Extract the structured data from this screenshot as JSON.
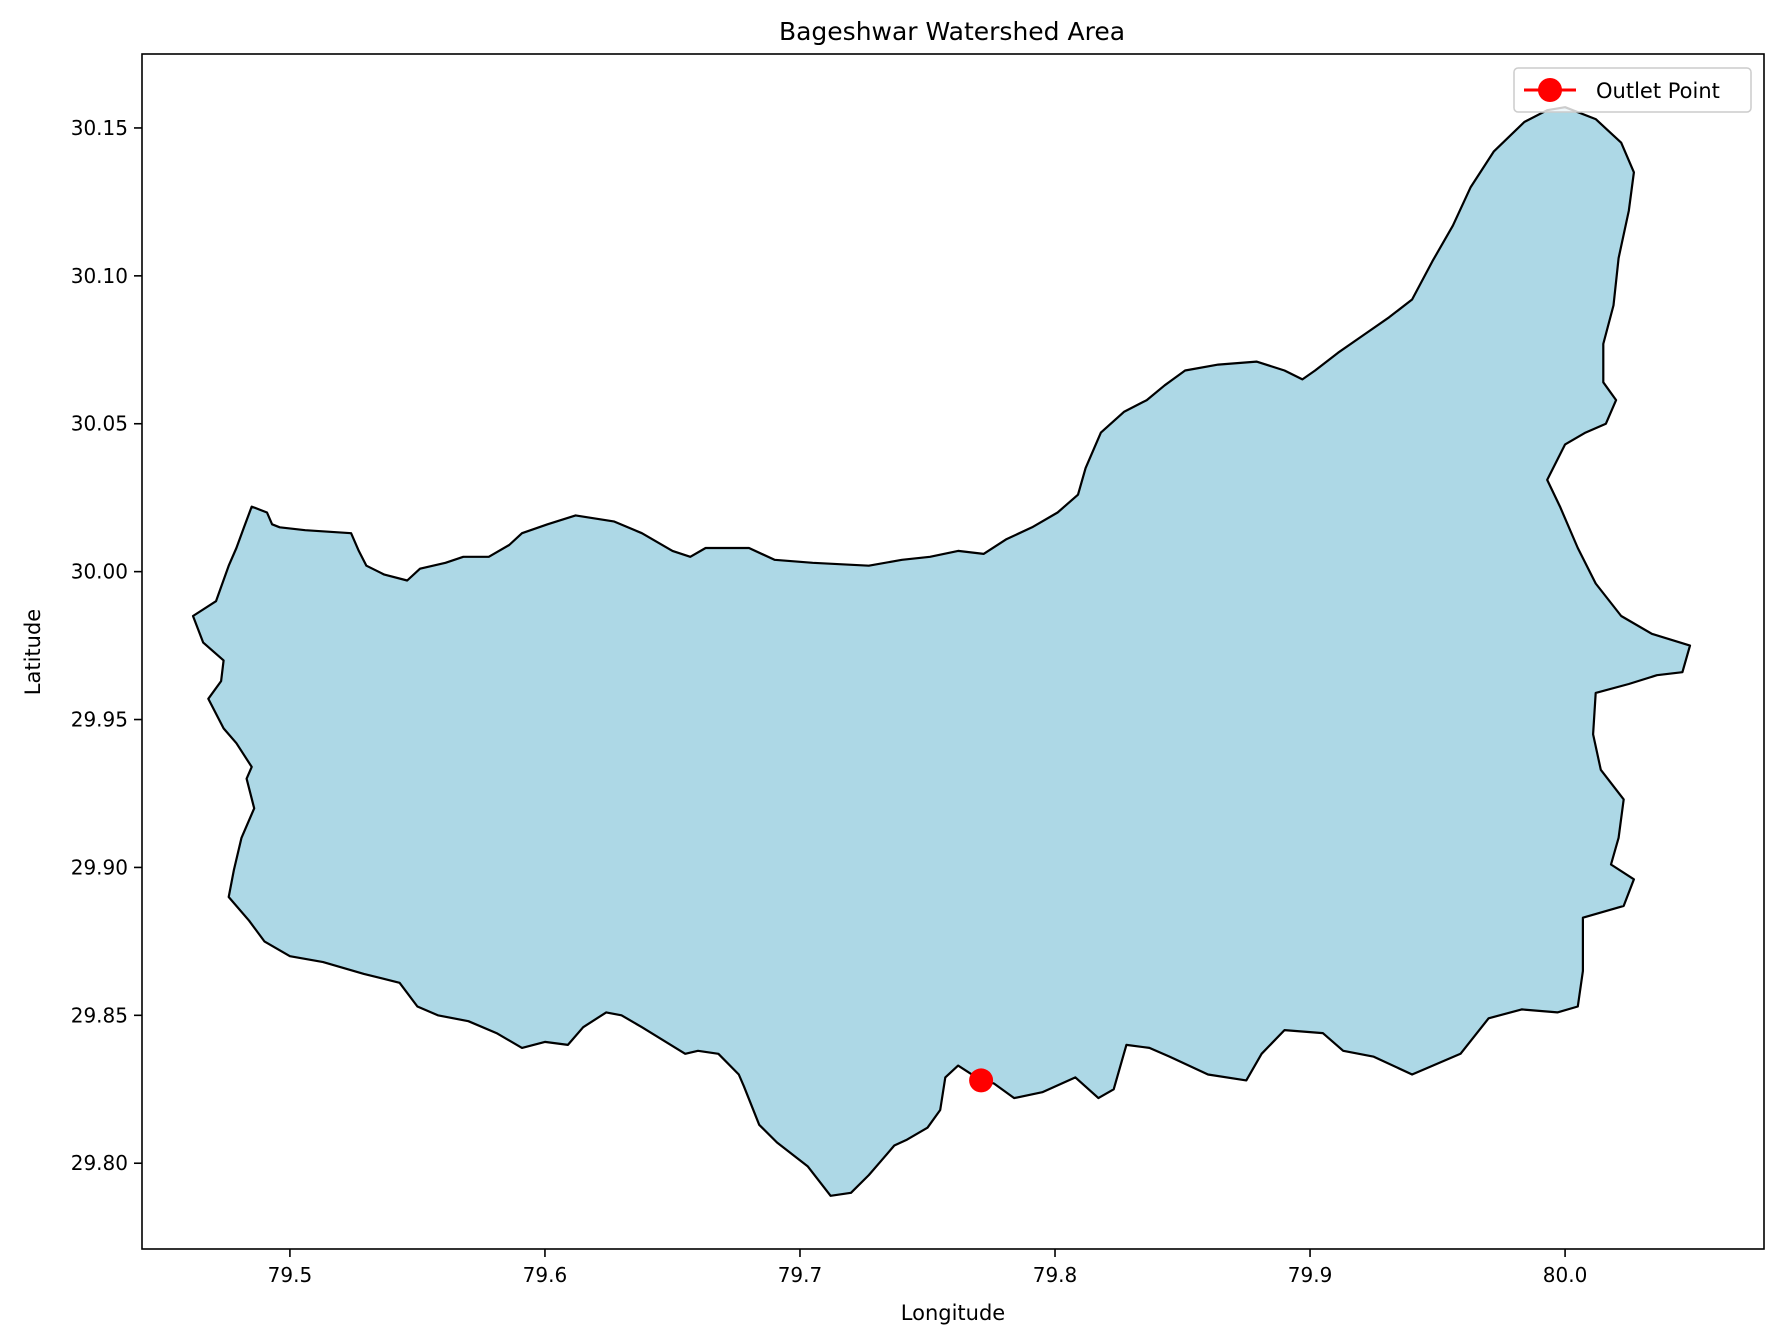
{
  "figure": {
    "title": "Bageshwar Watershed Area",
    "xlabel": "Longitude",
    "ylabel": "Latitude"
  },
  "legend": {
    "label": "Outlet Point",
    "placement": "upper right"
  },
  "colors": {
    "watershed_fill": "#add8e6",
    "watershed_edge": "#000000",
    "outlet": "#ff0000"
  },
  "map_data": {
    "xlim": [
      79.442,
      80.078
    ],
    "ylim": [
      29.771,
      30.175
    ],
    "xticks": [
      {
        "value": 79.5,
        "label": "79.5"
      },
      {
        "value": 79.6,
        "label": "79.6"
      },
      {
        "value": 79.7,
        "label": "79.7"
      },
      {
        "value": 79.8,
        "label": "79.8"
      },
      {
        "value": 79.9,
        "label": "79.9"
      },
      {
        "value": 80.0,
        "label": "80.0"
      }
    ],
    "yticks": [
      {
        "value": 29.8,
        "label": "29.80"
      },
      {
        "value": 29.85,
        "label": "29.85"
      },
      {
        "value": 29.9,
        "label": "29.90"
      },
      {
        "value": 29.95,
        "label": "29.95"
      },
      {
        "value": 30.0,
        "label": "30.00"
      },
      {
        "value": 30.05,
        "label": "30.05"
      },
      {
        "value": 30.1,
        "label": "30.10"
      },
      {
        "value": 30.15,
        "label": "30.15"
      }
    ],
    "outlet": {
      "lon": 79.771,
      "lat": 29.828
    },
    "watershed_boundary": [
      [
        79.471,
        29.99
      ],
      [
        79.476,
        30.002
      ],
      [
        79.479,
        30.008
      ],
      [
        79.482,
        30.015
      ],
      [
        79.485,
        30.022
      ],
      [
        79.491,
        30.02
      ],
      [
        79.493,
        30.016
      ],
      [
        79.496,
        30.015
      ],
      [
        79.506,
        30.014
      ],
      [
        79.524,
        30.013
      ],
      [
        79.527,
        30.007
      ],
      [
        79.53,
        30.002
      ],
      [
        79.537,
        29.999
      ],
      [
        79.546,
        29.997
      ],
      [
        79.551,
        30.001
      ],
      [
        79.561,
        30.003
      ],
      [
        79.568,
        30.005
      ],
      [
        79.578,
        30.005
      ],
      [
        79.586,
        30.009
      ],
      [
        79.591,
        30.013
      ],
      [
        79.601,
        30.016
      ],
      [
        79.612,
        30.019
      ],
      [
        79.627,
        30.017
      ],
      [
        79.638,
        30.013
      ],
      [
        79.65,
        30.007
      ],
      [
        79.657,
        30.005
      ],
      [
        79.663,
        30.008
      ],
      [
        79.68,
        30.008
      ],
      [
        79.69,
        30.004
      ],
      [
        79.705,
        30.003
      ],
      [
        79.727,
        30.002
      ],
      [
        79.74,
        30.004
      ],
      [
        79.751,
        30.005
      ],
      [
        79.762,
        30.007
      ],
      [
        79.772,
        30.006
      ],
      [
        79.781,
        30.011
      ],
      [
        79.791,
        30.015
      ],
      [
        79.801,
        30.02
      ],
      [
        79.809,
        30.026
      ],
      [
        79.812,
        30.035
      ],
      [
        79.818,
        30.047
      ],
      [
        79.827,
        30.054
      ],
      [
        79.836,
        30.058
      ],
      [
        79.843,
        30.063
      ],
      [
        79.851,
        30.068
      ],
      [
        79.864,
        30.07
      ],
      [
        79.879,
        30.071
      ],
      [
        79.89,
        30.068
      ],
      [
        79.897,
        30.065
      ],
      [
        79.902,
        30.068
      ],
      [
        79.911,
        30.074
      ],
      [
        79.921,
        30.08
      ],
      [
        79.931,
        30.086
      ],
      [
        79.94,
        30.092
      ],
      [
        79.948,
        30.105
      ],
      [
        79.956,
        30.117
      ],
      [
        79.963,
        30.13
      ],
      [
        79.972,
        30.142
      ],
      [
        79.984,
        30.152
      ],
      [
        79.993,
        30.156
      ],
      [
        80.0,
        30.157
      ],
      [
        80.012,
        30.153
      ],
      [
        80.022,
        30.145
      ],
      [
        80.027,
        30.135
      ],
      [
        80.025,
        30.122
      ],
      [
        80.021,
        30.106
      ],
      [
        80.019,
        30.09
      ],
      [
        80.015,
        30.077
      ],
      [
        80.015,
        30.064
      ],
      [
        80.02,
        30.058
      ],
      [
        80.016,
        30.05
      ],
      [
        80.008,
        30.047
      ],
      [
        80.0,
        30.043
      ],
      [
        79.993,
        30.031
      ],
      [
        79.998,
        30.022
      ],
      [
        80.005,
        30.008
      ],
      [
        80.012,
        29.996
      ],
      [
        80.022,
        29.985
      ],
      [
        80.034,
        29.979
      ],
      [
        80.049,
        29.975
      ],
      [
        80.046,
        29.966
      ],
      [
        80.036,
        29.965
      ],
      [
        80.025,
        29.962
      ],
      [
        80.012,
        29.959
      ],
      [
        80.011,
        29.945
      ],
      [
        80.014,
        29.933
      ],
      [
        80.023,
        29.923
      ],
      [
        80.021,
        29.91
      ],
      [
        80.018,
        29.901
      ],
      [
        80.027,
        29.896
      ],
      [
        80.023,
        29.887
      ],
      [
        80.007,
        29.883
      ],
      [
        80.007,
        29.865
      ],
      [
        80.005,
        29.853
      ],
      [
        79.997,
        29.851
      ],
      [
        79.983,
        29.852
      ],
      [
        79.97,
        29.849
      ],
      [
        79.959,
        29.837
      ],
      [
        79.94,
        29.83
      ],
      [
        79.925,
        29.836
      ],
      [
        79.913,
        29.838
      ],
      [
        79.905,
        29.844
      ],
      [
        79.89,
        29.845
      ],
      [
        79.881,
        29.837
      ],
      [
        79.875,
        29.828
      ],
      [
        79.86,
        29.83
      ],
      [
        79.845,
        29.836
      ],
      [
        79.837,
        29.839
      ],
      [
        79.828,
        29.84
      ],
      [
        79.823,
        29.825
      ],
      [
        79.817,
        29.822
      ],
      [
        79.808,
        29.829
      ],
      [
        79.795,
        29.824
      ],
      [
        79.784,
        29.822
      ],
      [
        79.776,
        29.827
      ],
      [
        79.771,
        29.828
      ],
      [
        79.762,
        29.833
      ],
      [
        79.757,
        29.829
      ],
      [
        79.755,
        29.818
      ],
      [
        79.75,
        29.812
      ],
      [
        79.742,
        29.808
      ],
      [
        79.737,
        29.806
      ],
      [
        79.732,
        29.801
      ],
      [
        79.727,
        29.796
      ],
      [
        79.72,
        29.79
      ],
      [
        79.712,
        29.789
      ],
      [
        79.703,
        29.799
      ],
      [
        79.691,
        29.807
      ],
      [
        79.684,
        29.813
      ],
      [
        79.678,
        29.826
      ],
      [
        79.676,
        29.83
      ],
      [
        79.668,
        29.837
      ],
      [
        79.66,
        29.838
      ],
      [
        79.655,
        29.837
      ],
      [
        79.638,
        29.846
      ],
      [
        79.63,
        29.85
      ],
      [
        79.624,
        29.851
      ],
      [
        79.615,
        29.846
      ],
      [
        79.609,
        29.84
      ],
      [
        79.6,
        29.841
      ],
      [
        79.591,
        29.839
      ],
      [
        79.581,
        29.844
      ],
      [
        79.57,
        29.848
      ],
      [
        79.558,
        29.85
      ],
      [
        79.55,
        29.853
      ],
      [
        79.543,
        29.861
      ],
      [
        79.529,
        29.864
      ],
      [
        79.513,
        29.868
      ],
      [
        79.5,
        29.87
      ],
      [
        79.49,
        29.875
      ],
      [
        79.484,
        29.882
      ],
      [
        79.476,
        29.89
      ],
      [
        79.478,
        29.899
      ],
      [
        79.481,
        29.91
      ],
      [
        79.486,
        29.92
      ],
      [
        79.483,
        29.93
      ],
      [
        79.485,
        29.934
      ],
      [
        79.479,
        29.942
      ],
      [
        79.474,
        29.947
      ],
      [
        79.468,
        29.957
      ],
      [
        79.473,
        29.963
      ],
      [
        79.474,
        29.97
      ],
      [
        79.466,
        29.976
      ],
      [
        79.462,
        29.985
      ]
    ]
  }
}
